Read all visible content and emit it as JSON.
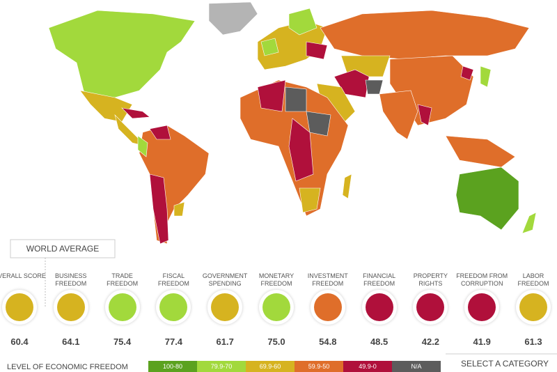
{
  "world_average": {
    "title": "WORLD AVERAGE",
    "items": [
      {
        "label": "OVERALL SCORE",
        "score": "60.4",
        "color": "#d6b320"
      },
      {
        "label": "BUSINESS FREEDOM",
        "score": "64.1",
        "color": "#d6b320"
      },
      {
        "label": "TRADE FREEDOM",
        "score": "75.4",
        "color": "#a2d93c"
      },
      {
        "label": "FISCAL FREEDOM",
        "score": "77.4",
        "color": "#a2d93c"
      },
      {
        "label": "GOVERNMENT SPENDING",
        "score": "61.7",
        "color": "#d6b320"
      },
      {
        "label": "MONETARY FREEDOM",
        "score": "75.0",
        "color": "#a2d93c"
      },
      {
        "label": "INVESTMENT FREEDOM",
        "score": "54.8",
        "color": "#df6e2a"
      },
      {
        "label": "FINANCIAL FREEDOM",
        "score": "48.5",
        "color": "#b0103b"
      },
      {
        "label": "PROPERTY RIGHTS",
        "score": "42.2",
        "color": "#b0103b"
      },
      {
        "label": "FREEDOM FROM CORRUPTION",
        "score": "41.9",
        "color": "#b0103b"
      },
      {
        "label": "LABOR FREEDOM",
        "score": "61.3",
        "color": "#d6b320"
      }
    ]
  },
  "legend": {
    "title": "LEVEL OF ECONOMIC FREEDOM",
    "entries": [
      {
        "label": "100-80",
        "color": "#5ba21f"
      },
      {
        "label": "79.9-70",
        "color": "#a2d93c"
      },
      {
        "label": "69.9-60",
        "color": "#d6b320"
      },
      {
        "label": "59.9-50",
        "color": "#df6e2a"
      },
      {
        "label": "49.9-0",
        "color": "#b0103b"
      },
      {
        "label": "N/A",
        "color": "#5c5c5c"
      }
    ]
  },
  "select_button": "SELECT A CATEGORY"
}
